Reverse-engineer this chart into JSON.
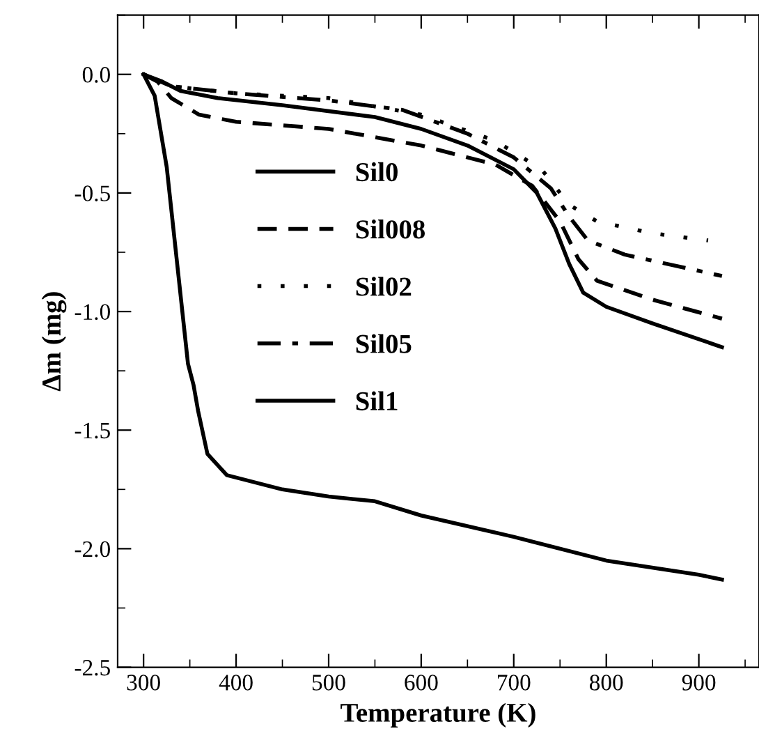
{
  "chart_data": {
    "type": "line",
    "xlabel": "Temperature (K)",
    "ylabel": "Δm (mg)",
    "xlim": [
      272,
      965
    ],
    "ylim": [
      -2.5,
      0.25
    ],
    "xticks": [
      300,
      400,
      500,
      600,
      700,
      800,
      900
    ],
    "yticks": [
      {
        "value": -2.5,
        "label": "-2.5"
      },
      {
        "value": -2.0,
        "label": "-2.0"
      },
      {
        "value": -1.5,
        "label": "-1.5"
      },
      {
        "value": -1.0,
        "label": "-1.0"
      },
      {
        "value": -0.5,
        "label": "-0.5"
      },
      {
        "value": 0,
        "label": "0.0"
      }
    ],
    "grid": false,
    "legend": "left",
    "marker": "none",
    "series": [
      {
        "name": "Sil0",
        "color": "#000000",
        "line_style": "solid",
        "x": [
          300,
          320,
          340,
          380,
          450,
          550,
          600,
          650,
          700,
          725,
          745,
          760,
          775,
          800,
          850,
          925
        ],
        "values": [
          0,
          -0.03,
          -0.07,
          -0.1,
          -0.13,
          -0.18,
          -0.23,
          -0.3,
          -0.4,
          -0.5,
          -0.65,
          -0.8,
          -0.92,
          -0.98,
          -1.05,
          -1.15
        ]
      },
      {
        "name": "Sil008",
        "color": "#000000",
        "line_style": "dashed",
        "x": [
          300,
          315,
          330,
          360,
          400,
          500,
          600,
          680,
          720,
          750,
          770,
          790,
          850,
          925
        ],
        "values": [
          0,
          -0.03,
          -0.1,
          -0.17,
          -0.2,
          -0.23,
          -0.3,
          -0.38,
          -0.47,
          -0.62,
          -0.78,
          -0.87,
          -0.95,
          -1.03
        ]
      },
      {
        "name": "Sil02",
        "color": "#000000",
        "line_style": "dotted",
        "x": [
          300,
          330,
          400,
          500,
          600,
          680,
          730,
          760,
          790,
          850,
          910
        ],
        "values": [
          0,
          -0.05,
          -0.08,
          -0.1,
          -0.17,
          -0.28,
          -0.4,
          -0.55,
          -0.62,
          -0.67,
          -0.7
        ]
      },
      {
        "name": "Sil05",
        "color": "#000000",
        "line_style": "dashdot",
        "x": [
          300,
          330,
          400,
          500,
          580,
          650,
          700,
          740,
          760,
          780,
          820,
          925
        ],
        "values": [
          0,
          -0.05,
          -0.08,
          -0.11,
          -0.15,
          -0.25,
          -0.35,
          -0.48,
          -0.6,
          -0.7,
          -0.76,
          -0.85
        ]
      },
      {
        "name": "Sil1",
        "color": "#000000",
        "line_style": "solid",
        "x": [
          300,
          312,
          325,
          348,
          354,
          359,
          369,
          390,
          450,
          500,
          550,
          600,
          700,
          800,
          900,
          925
        ],
        "values": [
          0,
          -0.09,
          -0.39,
          -1.22,
          -1.31,
          -1.42,
          -1.6,
          -1.69,
          -1.75,
          -1.78,
          -1.8,
          -1.86,
          -1.95,
          -2.05,
          -2.11,
          -2.13
        ]
      }
    ]
  }
}
